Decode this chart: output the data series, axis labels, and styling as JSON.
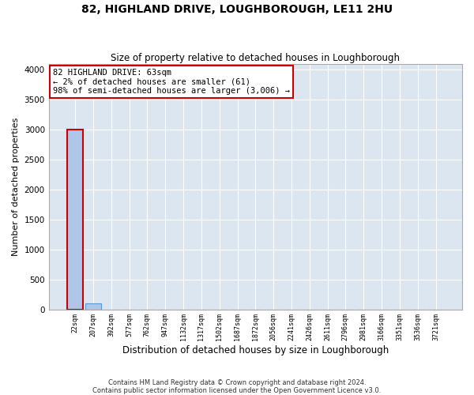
{
  "title": "82, HIGHLAND DRIVE, LOUGHBOROUGH, LE11 2HU",
  "subtitle": "Size of property relative to detached houses in Loughborough",
  "xlabel": "Distribution of detached houses by size in Loughborough",
  "ylabel": "Number of detached properties",
  "footer_line1": "Contains HM Land Registry data © Crown copyright and database right 2024.",
  "footer_line2": "Contains public sector information licensed under the Open Government Licence v3.0.",
  "bar_labels": [
    "22sqm",
    "207sqm",
    "392sqm",
    "577sqm",
    "762sqm",
    "947sqm",
    "1132sqm",
    "1317sqm",
    "1502sqm",
    "1687sqm",
    "1872sqm",
    "2056sqm",
    "2241sqm",
    "2426sqm",
    "2611sqm",
    "2796sqm",
    "2981sqm",
    "3166sqm",
    "3351sqm",
    "3536sqm",
    "3721sqm"
  ],
  "bar_values": [
    3000,
    100,
    0,
    0,
    0,
    0,
    0,
    0,
    0,
    0,
    0,
    0,
    0,
    0,
    0,
    0,
    0,
    0,
    0,
    0,
    0
  ],
  "bar_color": "#aec6e8",
  "bar_edge_color": "#5b9bd5",
  "ylim": [
    0,
    4100
  ],
  "yticks": [
    0,
    500,
    1000,
    1500,
    2000,
    2500,
    3000,
    3500,
    4000
  ],
  "annotation_text": "82 HIGHLAND DRIVE: 63sqm\n← 2% of detached houses are smaller (61)\n98% of semi-detached houses are larger (3,006) →",
  "annotation_box_color": "#ffffff",
  "annotation_box_edgecolor": "#cc0000",
  "bg_color": "#ffffff",
  "plot_bg_color": "#dce6f1",
  "grid_color": "#ffffff",
  "highlight_bar_index": 0,
  "highlight_bar_color": "#cc0000"
}
